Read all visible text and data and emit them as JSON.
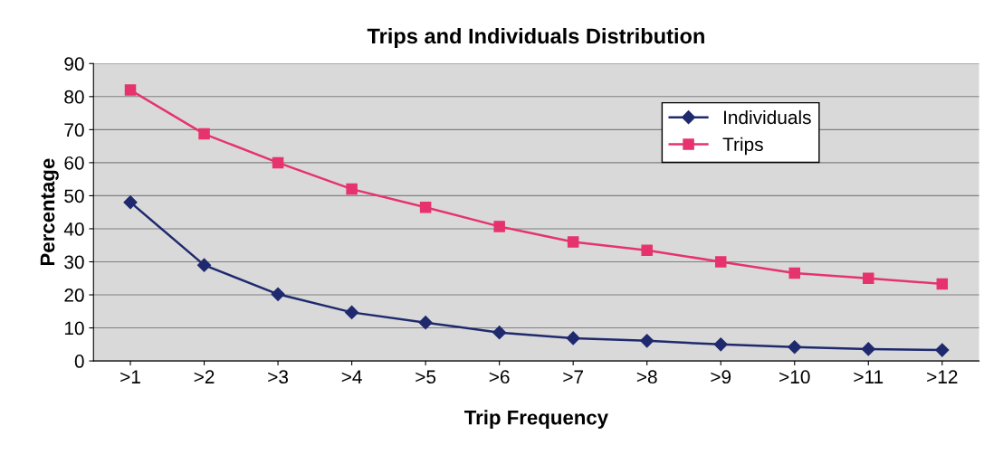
{
  "chart_data": {
    "type": "line",
    "title": "Trips and Individuals Distribution",
    "xlabel": "Trip Frequency",
    "ylabel": "Percentage",
    "categories": [
      ">1",
      ">2",
      ">3",
      ">4",
      ">5",
      ">6",
      ">7",
      ">8",
      ">9",
      ">10",
      ">11",
      ">12"
    ],
    "series": [
      {
        "name": "Individuals",
        "color": "#1f2a6e",
        "marker": "diamond",
        "values": [
          48,
          29,
          20.2,
          14.7,
          11.6,
          8.6,
          6.9,
          6.1,
          5,
          4.2,
          3.6,
          3.3
        ]
      },
      {
        "name": "Trips",
        "color": "#e6336e",
        "marker": "square",
        "values": [
          82,
          68.7,
          60,
          52,
          46.5,
          40.7,
          36,
          33.5,
          30,
          26.6,
          25,
          23.3
        ]
      }
    ],
    "ylim": [
      0,
      90
    ],
    "yticks": [
      0,
      10,
      20,
      30,
      40,
      50,
      60,
      70,
      80,
      90
    ],
    "grid": "y",
    "legend": "top right",
    "line_style": "solid"
  }
}
